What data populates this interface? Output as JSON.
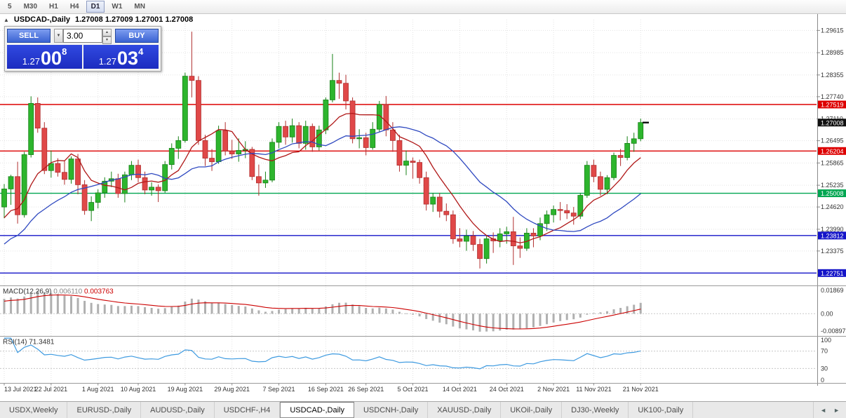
{
  "toolbar": {
    "periods": [
      "5",
      "M30",
      "H1",
      "H4",
      "D1",
      "W1",
      "MN"
    ],
    "active_period": "D1"
  },
  "chart_header": {
    "collapse_icon": "▲",
    "symbol_label": "USDCAD-,Daily",
    "quote": "1.27008 1.27009 1.27001 1.27008"
  },
  "trade_widget": {
    "sell_label": "SELL",
    "buy_label": "BUY",
    "volume": "3.00",
    "dropdown_icon": "▼",
    "spin_up_icon": "▲",
    "spin_down_icon": "▼",
    "sell_price": {
      "prefix": "1.27",
      "big": "00",
      "sup": "8"
    },
    "buy_price": {
      "prefix": "1.27",
      "big": "03",
      "sup": "4"
    }
  },
  "tabs": {
    "items": [
      "USDX,Weekly",
      "EURUSD-,Daily",
      "AUDUSD-,Daily",
      "USDCHF-,H4",
      "USDCAD-,Daily",
      "USDCNH-,Daily",
      "XAUUSD-,Daily",
      "UKOil-,Daily",
      "DJ30-,Weekly",
      "UK100-,Daily"
    ],
    "active": "USDCAD-,Daily",
    "scroll_left_icon": "◄",
    "scroll_right_icon": "►"
  },
  "chart_data": {
    "type": "candlestick",
    "symbol": "USDCAD-",
    "timeframe": "Daily",
    "y_range": [
      1.2242,
      1.2992
    ],
    "price_axis_labels": [
      "1.29615",
      "1.28985",
      "1.28355",
      "1.27740",
      "1.27110",
      "1.26495",
      "1.25865",
      "1.25235",
      "1.24620",
      "1.23990",
      "1.23375"
    ],
    "current_price": {
      "value": 1.27008,
      "label_color": "#111111"
    },
    "hlines": [
      {
        "price": 1.27519,
        "color": "#dd0000"
      },
      {
        "price": 1.26204,
        "color": "#dd0000"
      },
      {
        "price": 1.25008,
        "color": "#00a651"
      },
      {
        "price": 1.23812,
        "color": "#1414c8"
      },
      {
        "price": 1.22751,
        "color": "#1414c8"
      }
    ],
    "moving_averages": [
      {
        "period": 8,
        "color": "#b01818"
      },
      {
        "period": 20,
        "color": "#2f49c0"
      }
    ],
    "candle_colors": {
      "up": "#2db52d",
      "up_border": "#178217",
      "down": "#e04848",
      "down_border": "#b02f2f"
    },
    "date_ticks": [
      {
        "i": 0,
        "label": "13 Jul 2021"
      },
      {
        "i": 7,
        "label": "22 Jul 2021"
      },
      {
        "i": 14,
        "label": "1 Aug 2021"
      },
      {
        "i": 20,
        "label": "10 Aug 2021"
      },
      {
        "i": 27,
        "label": "19 Aug 2021"
      },
      {
        "i": 34,
        "label": "29 Aug 2021"
      },
      {
        "i": 41,
        "label": "7 Sep 2021"
      },
      {
        "i": 48,
        "label": "16 Sep 2021"
      },
      {
        "i": 54,
        "label": "26 Sep 2021"
      },
      {
        "i": 61,
        "label": "5 Oct 2021"
      },
      {
        "i": 68,
        "label": "14 Oct 2021"
      },
      {
        "i": 75,
        "label": "24 Oct 2021"
      },
      {
        "i": 82,
        "label": "2 Nov 2021"
      },
      {
        "i": 88,
        "label": "11 Nov 2021"
      },
      {
        "i": 95,
        "label": "21 Nov 2021"
      }
    ],
    "candles": [
      [
        1.2462,
        1.2527,
        1.243,
        1.2513
      ],
      [
        1.2513,
        1.2553,
        1.2468,
        1.2548
      ],
      [
        1.2548,
        1.259,
        1.2415,
        1.244
      ],
      [
        1.244,
        1.2618,
        1.2432,
        1.261
      ],
      [
        1.261,
        1.2775,
        1.2602,
        1.2755
      ],
      [
        1.2755,
        1.2772,
        1.2672,
        1.2685
      ],
      [
        1.2685,
        1.2702,
        1.2555,
        1.2565
      ],
      [
        1.2565,
        1.2622,
        1.2545,
        1.2585
      ],
      [
        1.2585,
        1.26,
        1.2548,
        1.256
      ],
      [
        1.256,
        1.2592,
        1.2525,
        1.254
      ],
      [
        1.254,
        1.2605,
        1.2528,
        1.2598
      ],
      [
        1.2598,
        1.2612,
        1.2498,
        1.2525
      ],
      [
        1.2525,
        1.2538,
        1.244,
        1.2452
      ],
      [
        1.2452,
        1.2492,
        1.2422,
        1.2475
      ],
      [
        1.2475,
        1.2512,
        1.2458,
        1.2502
      ],
      [
        1.2502,
        1.2546,
        1.2488,
        1.2535
      ],
      [
        1.2535,
        1.2562,
        1.2518,
        1.2542
      ],
      [
        1.2542,
        1.2556,
        1.2488,
        1.25
      ],
      [
        1.25,
        1.2562,
        1.2475,
        1.2553
      ],
      [
        1.2553,
        1.2592,
        1.2538,
        1.258
      ],
      [
        1.258,
        1.2596,
        1.2532,
        1.2545
      ],
      [
        1.2545,
        1.2562,
        1.2498,
        1.251
      ],
      [
        1.251,
        1.2532,
        1.2494,
        1.2518
      ],
      [
        1.2518,
        1.2526,
        1.2476,
        1.2508
      ],
      [
        1.2508,
        1.2592,
        1.2502,
        1.2582
      ],
      [
        1.2582,
        1.2642,
        1.2568,
        1.2628
      ],
      [
        1.2628,
        1.2662,
        1.2598,
        1.265
      ],
      [
        1.265,
        1.2842,
        1.2644,
        1.2832
      ],
      [
        1.2832,
        1.2958,
        1.2772,
        1.282
      ],
      [
        1.282,
        1.2832,
        1.2638,
        1.265
      ],
      [
        1.265,
        1.2666,
        1.2578,
        1.26
      ],
      [
        1.26,
        1.2626,
        1.2564,
        1.259
      ],
      [
        1.259,
        1.2692,
        1.2584,
        1.2678
      ],
      [
        1.2678,
        1.2702,
        1.2608,
        1.262
      ],
      [
        1.262,
        1.2652,
        1.2598,
        1.2612
      ],
      [
        1.2612,
        1.2656,
        1.259,
        1.2622
      ],
      [
        1.2622,
        1.2648,
        1.26,
        1.2625
      ],
      [
        1.2625,
        1.2632,
        1.2538,
        1.2548
      ],
      [
        1.2548,
        1.2582,
        1.2494,
        1.253
      ],
      [
        1.253,
        1.2562,
        1.2516,
        1.2538
      ],
      [
        1.2538,
        1.2656,
        1.2532,
        1.2645
      ],
      [
        1.2645,
        1.2702,
        1.2628,
        1.269
      ],
      [
        1.269,
        1.2706,
        1.2638,
        1.266
      ],
      [
        1.266,
        1.2712,
        1.2644,
        1.2692
      ],
      [
        1.2692,
        1.2702,
        1.2628,
        1.2642
      ],
      [
        1.2642,
        1.2706,
        1.2624,
        1.269
      ],
      [
        1.269,
        1.2698,
        1.2618,
        1.2632
      ],
      [
        1.2632,
        1.2692,
        1.2622,
        1.268
      ],
      [
        1.268,
        1.2772,
        1.2668,
        1.2765
      ],
      [
        1.2765,
        1.2895,
        1.2758,
        1.282
      ],
      [
        1.282,
        1.2842,
        1.2768,
        1.2812
      ],
      [
        1.2812,
        1.2836,
        1.2738,
        1.2762
      ],
      [
        1.2762,
        1.2772,
        1.2642,
        1.2655
      ],
      [
        1.2655,
        1.2682,
        1.2628,
        1.2658
      ],
      [
        1.2658,
        1.2672,
        1.2608,
        1.263
      ],
      [
        1.263,
        1.2702,
        1.2624,
        1.2682
      ],
      [
        1.2682,
        1.2762,
        1.2674,
        1.2752
      ],
      [
        1.2752,
        1.2776,
        1.2662,
        1.268
      ],
      [
        1.268,
        1.2702,
        1.2618,
        1.265
      ],
      [
        1.265,
        1.2666,
        1.2562,
        1.258
      ],
      [
        1.258,
        1.2622,
        1.2552,
        1.2592
      ],
      [
        1.2592,
        1.2602,
        1.2542,
        1.2588
      ],
      [
        1.2588,
        1.2596,
        1.2528,
        1.2545
      ],
      [
        1.2545,
        1.2562,
        1.2452,
        1.247
      ],
      [
        1.247,
        1.2502,
        1.2448,
        1.249
      ],
      [
        1.249,
        1.2502,
        1.2432,
        1.245
      ],
      [
        1.245,
        1.2472,
        1.2422,
        1.244
      ],
      [
        1.244,
        1.2452,
        1.2358,
        1.2372
      ],
      [
        1.2372,
        1.2402,
        1.2348,
        1.2365
      ],
      [
        1.2365,
        1.2398,
        1.2338,
        1.238
      ],
      [
        1.238,
        1.2394,
        1.2338,
        1.2356
      ],
      [
        1.2356,
        1.2372,
        1.2288,
        1.2316
      ],
      [
        1.2316,
        1.2382,
        1.2302,
        1.2372
      ],
      [
        1.2372,
        1.239,
        1.2332,
        1.2366
      ],
      [
        1.2366,
        1.2402,
        1.2348,
        1.2386
      ],
      [
        1.2386,
        1.2406,
        1.2358,
        1.2392
      ],
      [
        1.2392,
        1.2434,
        1.2298,
        1.2352
      ],
      [
        1.2352,
        1.2376,
        1.2318,
        1.2345
      ],
      [
        1.2345,
        1.2402,
        1.2338,
        1.2388
      ],
      [
        1.2388,
        1.2402,
        1.2348,
        1.238
      ],
      [
        1.238,
        1.2432,
        1.2368,
        1.2415
      ],
      [
        1.2415,
        1.2452,
        1.2394,
        1.244
      ],
      [
        1.244,
        1.2466,
        1.2418,
        1.2455
      ],
      [
        1.2455,
        1.2476,
        1.2424,
        1.2452
      ],
      [
        1.2452,
        1.247,
        1.2428,
        1.2445
      ],
      [
        1.2445,
        1.2462,
        1.2412,
        1.2436
      ],
      [
        1.2436,
        1.2502,
        1.2428,
        1.2495
      ],
      [
        1.2495,
        1.2592,
        1.2488,
        1.258
      ],
      [
        1.258,
        1.2596,
        1.2532,
        1.2548
      ],
      [
        1.2548,
        1.2562,
        1.2494,
        1.2512
      ],
      [
        1.2512,
        1.2552,
        1.2498,
        1.2545
      ],
      [
        1.2545,
        1.2616,
        1.2538,
        1.2608
      ],
      [
        1.2608,
        1.2626,
        1.2578,
        1.2602
      ],
      [
        1.2602,
        1.2662,
        1.2594,
        1.2642
      ],
      [
        1.2642,
        1.2672,
        1.2618,
        1.2655
      ],
      [
        1.2655,
        1.2712,
        1.2648,
        1.2701
      ]
    ],
    "indicators": {
      "macd": {
        "title": "MACD(12,26,9)",
        "value_main": "0.006110",
        "value_signal": "0.003763",
        "fast": 12,
        "slow": 26,
        "signal": 9,
        "axis_labels": [
          "0.01869",
          "0.00",
          "-0.00897"
        ],
        "histogram_color": "#b0b0b0",
        "signal_color": "#cc0000"
      },
      "rsi": {
        "title": "RSI(14)",
        "value": "71.3481",
        "period": 14,
        "levels": [
          70,
          30
        ],
        "axis_labels": [
          "100",
          "70",
          "30",
          "0"
        ],
        "line_color": "#3d9ae0"
      }
    }
  }
}
